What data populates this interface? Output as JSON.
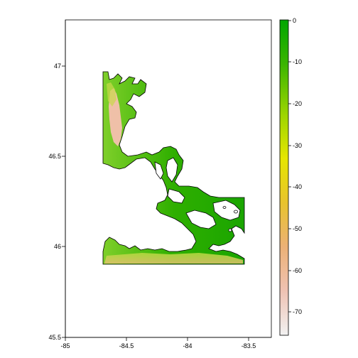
{
  "map": {
    "x_ticks": [
      "-85",
      "-84.5",
      "-84",
      "-83.5"
    ],
    "y_ticks": [
      "45.5",
      "46",
      "46.5",
      "47"
    ],
    "legend_ticks": [
      "0",
      "-10",
      "-20",
      "-30",
      "-40",
      "-50",
      "-60",
      "-70"
    ],
    "legend_colors": [
      "#00a600",
      "#63c600",
      "#e6e600",
      "#e9bd3a",
      "#ecb176",
      "#efc2b3",
      "#f2f2f2"
    ],
    "land_color": "#ffffff",
    "outline_color": "#000000"
  },
  "chart_data": {
    "type": "heatmap",
    "title": "",
    "xlabel": "",
    "ylabel": "",
    "xlim": [
      -85,
      -83.3
    ],
    "ylim": [
      45.5,
      47.25
    ],
    "value_range": [
      -76,
      0
    ],
    "colorbar": {
      "ticks": [
        0,
        -10,
        -20,
        -30,
        -40,
        -50,
        -60,
        -70
      ]
    }
  }
}
